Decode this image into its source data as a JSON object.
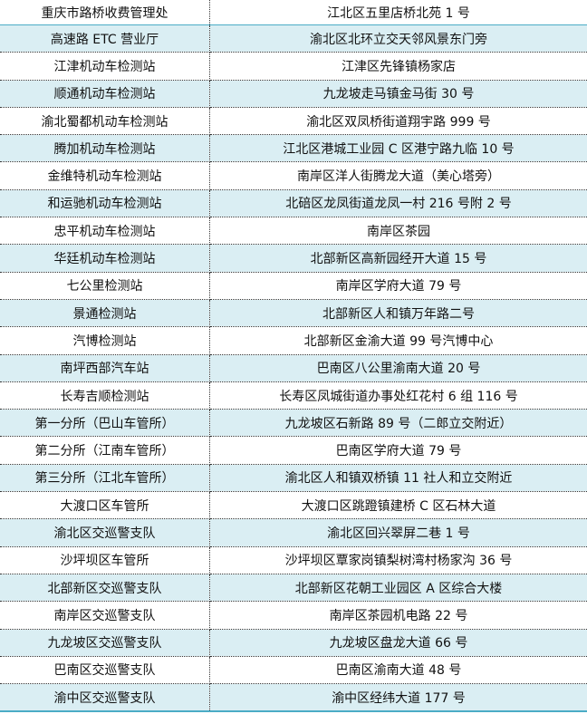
{
  "table": {
    "rows": [
      {
        "name": "重庆市路桥收费管理处",
        "address": "江北区五里店桥北苑 1 号"
      },
      {
        "name": "高速路 ETC 营业厅",
        "address": "渝北区北环立交天邻风景东门旁"
      },
      {
        "name": "江津机动车检测站",
        "address": "江津区先锋镇杨家店"
      },
      {
        "name": "顺通机动车检测站",
        "address": "九龙坡走马镇金马街 30 号"
      },
      {
        "name": "渝北蜀都机动车检测站",
        "address": "渝北区双凤桥街道翔宇路 999 号"
      },
      {
        "name": "腾加机动车检测站",
        "address": "江北区港城工业园 C 区港宁路九临 10 号"
      },
      {
        "name": "金维特机动车检测站",
        "address": "南岸区洋人街腾龙大道（美心塔旁）"
      },
      {
        "name": "和运驰机动车检测站",
        "address": "北碚区龙凤街道龙凤一村 216 号附 2 号"
      },
      {
        "name": "忠平机动车检测站",
        "address": "南岸区茶园"
      },
      {
        "name": "华廷机动车检测站",
        "address": "北部新区高新园经开大道 15 号"
      },
      {
        "name": "七公里检测站",
        "address": "南岸区学府大道 79 号"
      },
      {
        "name": "景通检测站",
        "address": "北部新区人和镇万年路二号"
      },
      {
        "name": "汽博检测站",
        "address": "北部新区金渝大道 99 号汽博中心"
      },
      {
        "name": "南坪西部汽车站",
        "address": "巴南区八公里渝南大道 20 号"
      },
      {
        "name": "长寿吉顺检测站",
        "address": "长寿区凤城街道办事处红花村 6 组 116 号"
      },
      {
        "name": "第一分所（巴山车管所）",
        "address": "九龙坡区石新路 89 号（二郎立交附近）"
      },
      {
        "name": "第二分所（江南车管所）",
        "address": "巴南区学府大道 79 号"
      },
      {
        "name": "第三分所（江北车管所）",
        "address": "渝北区人和镇双桥镇 11 社人和立交附近"
      },
      {
        "name": "大渡口区车管所",
        "address": "大渡口区跳蹬镇建桥 C 区石林大道"
      },
      {
        "name": "渝北区交巡警支队",
        "address": "渝北区回兴翠屏二巷 1 号"
      },
      {
        "name": "沙坪坝区车管所",
        "address": "沙坪坝区覃家岗镇梨树湾村杨家沟 36 号"
      },
      {
        "name": "北部新区交巡警支队",
        "address": "北部新区花朝工业园区 A 区综合大楼"
      },
      {
        "name": "南岸区交巡警支队",
        "address": "南岸区茶园机电路 22 号"
      },
      {
        "name": "九龙坡区交巡警支队",
        "address": "九龙坡区盘龙大道 66 号"
      },
      {
        "name": "巴南区交巡警支队",
        "address": "巴南区渝南大道 48 号"
      },
      {
        "name": "渝中区交巡警支队",
        "address": "渝中区经纬大道 177 号"
      }
    ]
  },
  "colors": {
    "alt_row": "#daeef3",
    "accent_line": "#4bacc6"
  }
}
